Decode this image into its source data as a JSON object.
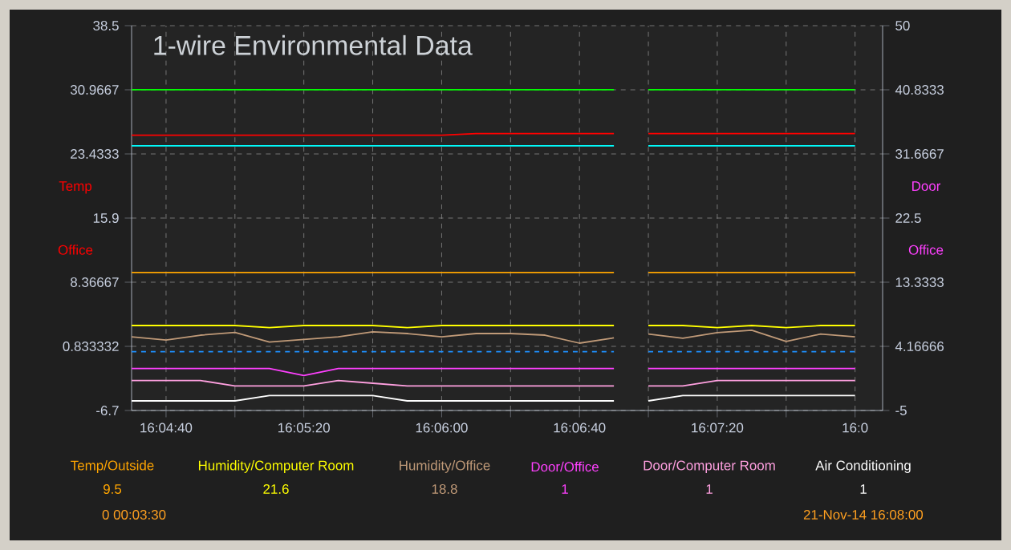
{
  "chart_data": {
    "type": "line",
    "title": "1-wire Environmental Data",
    "ylabel": "Temp Office",
    "y2label": "Door Office",
    "x": [
      16.075,
      16.077778,
      16.080556,
      16.083333,
      16.086111,
      16.088889,
      16.091667,
      16.094444,
      16.097222,
      16.1,
      16.102778,
      16.105556,
      16.108333,
      16.111111,
      16.113889,
      16.115278,
      16.116667,
      16.119444,
      16.122222,
      16.125,
      16.127778,
      16.130556,
      16.133333
    ],
    "series": [
      {
        "color": "#00ff00",
        "values": [
          30.97,
          30.97,
          30.97,
          30.97,
          30.97,
          30.97,
          30.97,
          30.97,
          30.97,
          30.97,
          30.97,
          30.97,
          30.97,
          30.97,
          30.97,
          null,
          30.97,
          30.97,
          30.97,
          30.97,
          30.97,
          30.97,
          30.97
        ]
      },
      {
        "color": "#ff0000",
        "values": [
          25.64,
          25.64,
          25.64,
          25.64,
          25.64,
          25.64,
          25.64,
          25.64,
          25.64,
          25.64,
          25.83,
          25.83,
          25.83,
          25.83,
          25.83,
          null,
          25.83,
          25.83,
          25.83,
          25.83,
          25.83,
          25.83,
          25.83
        ]
      },
      {
        "color": "#00ffff",
        "values": [
          24.38,
          24.38,
          24.38,
          24.38,
          24.38,
          24.38,
          24.38,
          24.38,
          24.38,
          24.38,
          24.38,
          24.38,
          24.38,
          24.38,
          24.38,
          null,
          24.38,
          24.38,
          24.38,
          24.38,
          24.38,
          24.38,
          24.38
        ]
      },
      {
        "name": "Temp/Outside",
        "color": "#ffa500",
        "values": [
          9.5,
          9.5,
          9.5,
          9.5,
          9.5,
          9.5,
          9.5,
          9.5,
          9.5,
          9.5,
          9.5,
          9.5,
          9.5,
          9.5,
          9.5,
          null,
          9.5,
          9.5,
          9.5,
          9.5,
          9.5,
          9.5,
          9.5
        ]
      },
      {
        "name": "Humidity/Computer Room",
        "color": "#ffff00",
        "values": [
          3.28,
          3.28,
          3.28,
          3.28,
          3.04,
          3.28,
          3.28,
          3.28,
          3.04,
          3.28,
          3.28,
          3.28,
          3.28,
          3.28,
          3.28,
          null,
          3.28,
          3.28,
          3.04,
          3.28,
          3.04,
          3.28,
          3.28
        ]
      },
      {
        "name": "Humidity/Office",
        "color": "#c09a78",
        "values": [
          1.96,
          1.58,
          2.15,
          2.47,
          1.34,
          1.65,
          1.96,
          2.53,
          2.34,
          1.96,
          2.34,
          2.34,
          2.15,
          1.21,
          1.83,
          null,
          2.28,
          1.78,
          2.44,
          2.72,
          1.4,
          2.28,
          1.96
        ]
      },
      {
        "color": "#1e90ff",
        "line_style": "dashed",
        "values": [
          0.21,
          0.21,
          0.21,
          0.21,
          0.21,
          0.21,
          0.21,
          0.21,
          0.21,
          0.21,
          0.21,
          0.21,
          0.21,
          0.21,
          0.21,
          null,
          0.21,
          0.21,
          0.21,
          0.21,
          0.21,
          0.21,
          0.21
        ]
      },
      {
        "name": "Door/Office",
        "color": "#ff40ff",
        "axis": "y2",
        "values": [
          1,
          1,
          1,
          1,
          1,
          0,
          1,
          1,
          1,
          1,
          1,
          1,
          1,
          1,
          1,
          null,
          1,
          1,
          1,
          1,
          1,
          1,
          1
        ]
      },
      {
        "name": "Door/Computer Room",
        "color": "#ffa0e0",
        "values": [
          -3.18,
          -3.18,
          -3.18,
          -3.82,
          -3.82,
          -3.82,
          -3.18,
          -3.5,
          -3.82,
          -3.82,
          -3.82,
          -3.82,
          -3.82,
          -3.82,
          -3.82,
          null,
          -3.82,
          -3.82,
          -3.18,
          -3.18,
          -3.18,
          -3.18,
          -3.18
        ]
      },
      {
        "name": "Air Conditioning",
        "color": "#ffffff",
        "values": [
          -5.57,
          -5.57,
          -5.57,
          -5.57,
          -4.95,
          -4.95,
          -4.95,
          -4.95,
          -5.57,
          -5.57,
          -5.57,
          -5.57,
          -5.57,
          -5.57,
          -5.57,
          null,
          -5.57,
          -4.95,
          -4.95,
          -4.95,
          -4.95,
          -4.95,
          -4.95
        ]
      }
    ],
    "xlim": [
      16.075,
      16.135556
    ],
    "xticks": [
      {
        "value": 16.077778,
        "label": "16:04:40"
      },
      {
        "value": 16.083333,
        "label": null
      },
      {
        "value": 16.088889,
        "label": "16:05:20"
      },
      {
        "value": 16.094444,
        "label": null
      },
      {
        "value": 16.1,
        "label": "16:06:00"
      },
      {
        "value": 16.105556,
        "label": null
      },
      {
        "value": 16.111111,
        "label": "16:06:40"
      },
      {
        "value": 16.116667,
        "label": null
      },
      {
        "value": 16.122222,
        "label": "16:07:20"
      },
      {
        "value": 16.127778,
        "label": null
      },
      {
        "value": 16.133333,
        "label": "16:0"
      }
    ],
    "ylim": [
      -6.7,
      38.5
    ],
    "yticks": [
      -6.7,
      0.833332,
      8.36667,
      15.9,
      23.4333,
      30.9667,
      38.5
    ],
    "y2lim": [
      -5,
      50
    ],
    "y2ticks": [
      -5,
      4.16666,
      13.3333,
      22.5,
      31.6667,
      40.8333,
      50
    ],
    "grid": true,
    "legend": "bottom",
    "marker": "none",
    "line_style": "solid",
    "annotations": [
      "9.5",
      "21.6",
      "18.8",
      "1",
      "1",
      "1",
      "0 00:03:30",
      "21-Nov-14 16:08:00"
    ]
  }
}
